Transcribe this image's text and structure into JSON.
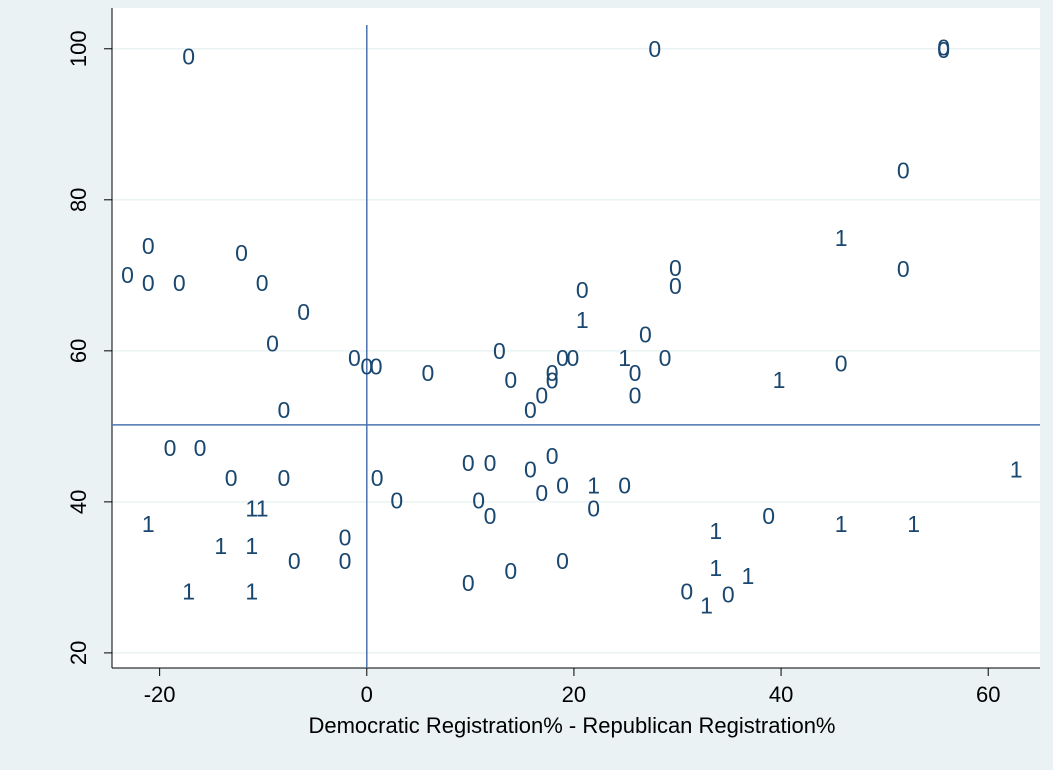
{
  "chart_data": {
    "type": "scatter",
    "x_label": "Democratic Registration% - Republican Registration%",
    "xlim": [
      -24.6,
      65.0
    ],
    "ylim": [
      18.0,
      105.4
    ],
    "xticks": [
      -20,
      0,
      20,
      40,
      60
    ],
    "yticks": [
      20,
      40,
      60,
      80,
      100
    ],
    "grid": true,
    "xline": 0,
    "yline": 50.2,
    "series": [
      {
        "color": "#1a476f",
        "x": [
          -17.2,
          27.8,
          55.7,
          55.7,
          51.8,
          45.8,
          51.8,
          -23.1,
          -21.1,
          -21.1,
          -18.1,
          -12.1,
          -10.1,
          -6.1,
          -9.1,
          -8.0,
          -1.2,
          0,
          0.9,
          5.9,
          12.8,
          13.9,
          20.8,
          20.8,
          29.8,
          29.8,
          26.9,
          28.8,
          24.9,
          25.9,
          25.9,
          18.9,
          19.9,
          17.9,
          17.9,
          16.9,
          15.8,
          39.8,
          45.8,
          62.7,
          -19.0,
          -16.1,
          -13.1,
          -8.0,
          -11.1,
          -10.1,
          -21.1,
          -14.1,
          -11.1,
          -7.0,
          -2.1,
          -2.1,
          -17.2,
          -11.1,
          1.0,
          2.9,
          9.8,
          11.9,
          10.8,
          11.9,
          15.8,
          17.9,
          16.9,
          18.9,
          21.9,
          21.9,
          24.9,
          9.8,
          13.9,
          18.9,
          33.7,
          33.7,
          36.8,
          30.9,
          32.8,
          34.9,
          38.8,
          45.8,
          52.8
        ],
        "values": [
          98.7,
          99.7,
          99.6,
          99.9,
          83.6,
          74.7,
          70.6,
          69.8,
          73.6,
          68.7,
          68.7,
          72.7,
          68.7,
          64.9,
          60.7,
          51.9,
          58.8,
          57.7,
          57.7,
          56.8,
          59.7,
          55.9,
          63.8,
          67.8,
          70.7,
          68.3,
          61.9,
          58.8,
          58.8,
          56.8,
          53.8,
          58.8,
          58.8,
          56.8,
          55.8,
          53.8,
          51.9,
          55.9,
          58.1,
          44.0,
          46.9,
          46.9,
          42.9,
          42.9,
          38.9,
          38.9,
          36.8,
          33.9,
          33.9,
          31.9,
          35.0,
          31.9,
          27.9,
          27.9,
          42.9,
          39.9,
          44.9,
          44.9,
          39.9,
          37.9,
          44.0,
          45.8,
          40.9,
          41.9,
          41.9,
          38.9,
          41.9,
          29.0,
          30.6,
          31.9,
          35.9,
          31.0,
          29.9,
          27.9,
          26.0,
          27.5,
          37.9,
          36.8,
          36.8
        ],
        "labels": [
          "0",
          "0",
          "0",
          "0",
          "0",
          "1",
          "0",
          "0",
          "0",
          "0",
          "0",
          "0",
          "0",
          "0",
          "0",
          "0",
          "0",
          "0",
          "0",
          "0",
          "0",
          "0",
          "1",
          "0",
          "0",
          "0",
          "0",
          "0",
          "1",
          "0",
          "0",
          "0",
          "0",
          "0",
          "0",
          "0",
          "0",
          "1",
          "0",
          "1",
          "0",
          "0",
          "0",
          "0",
          "1",
          "1",
          "1",
          "1",
          "1",
          "0",
          "0",
          "0",
          "1",
          "1",
          "0",
          "0",
          "0",
          "0",
          "0",
          "0",
          "0",
          "0",
          "0",
          "0",
          "1",
          "0",
          "0",
          "0",
          "0",
          "0",
          "1",
          "1",
          "1",
          "0",
          "1",
          "0",
          "0",
          "1",
          "1"
        ]
      }
    ]
  }
}
